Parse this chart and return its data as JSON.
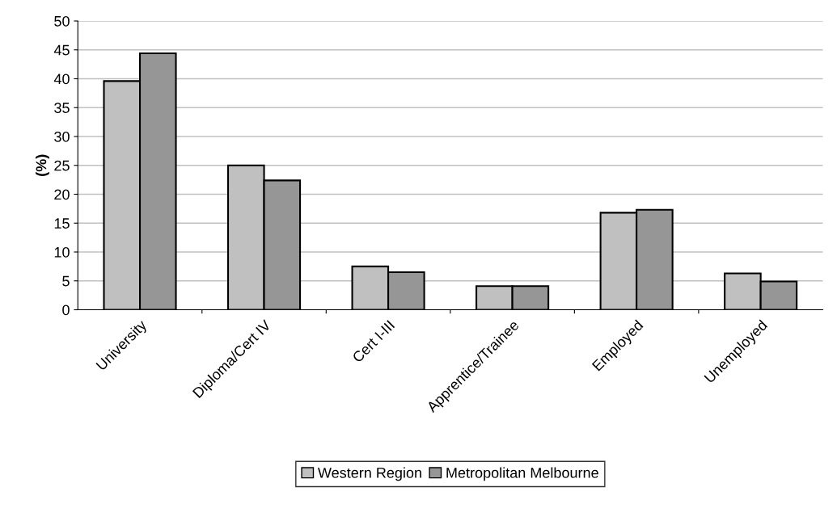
{
  "chart_data": {
    "type": "bar",
    "ylabel": "(%)",
    "categories": [
      "University",
      "Diploma/Cert IV",
      "Cert I-III",
      "Apprentice/Trainee",
      "Employed",
      "Unemployed"
    ],
    "series": [
      {
        "name": "Western Region",
        "color": "#c0c0c0",
        "values": [
          39.6,
          25.0,
          7.5,
          4.1,
          16.8,
          6.3
        ]
      },
      {
        "name": "Metropolitan Melbourne",
        "color": "#969696",
        "values": [
          44.4,
          22.4,
          6.5,
          4.1,
          17.3,
          4.9
        ]
      }
    ],
    "ylim": [
      0,
      50
    ],
    "yticks": [
      0,
      5,
      10,
      15,
      20,
      25,
      30,
      35,
      40,
      45,
      50
    ],
    "grid": "y",
    "legend": "bottom"
  }
}
